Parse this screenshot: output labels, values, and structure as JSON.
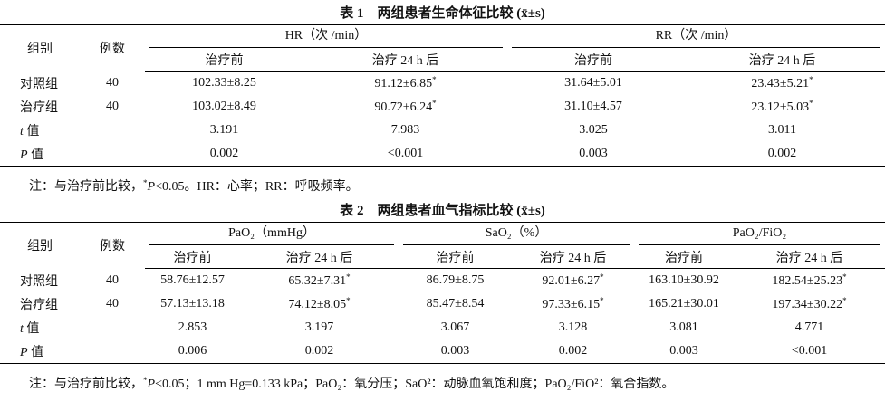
{
  "tables": [
    {
      "title": "表 1　两组患者生命体征比较 (x̄±s)",
      "header": {
        "group": "组别",
        "n": "例数",
        "spans": [
          "HR（次 /min）",
          "RR（次 /min）"
        ],
        "sub": [
          "治疗前",
          "治疗 24 h 后",
          "治疗前",
          "治疗 24 h 后"
        ]
      },
      "rows": [
        [
          "对照组",
          "40",
          "102.33±8.25",
          "91.12±6.85*",
          "31.64±5.01",
          "23.43±5.21*"
        ],
        [
          "治疗组",
          "40",
          "103.02±8.49",
          "90.72±6.24*",
          "31.10±4.57",
          "23.12±5.03*"
        ],
        [
          "t 值",
          null,
          "3.191",
          "7.983",
          "3.025",
          "3.011"
        ],
        [
          "P 值",
          null,
          "0.002",
          "<0.001",
          "0.003",
          "0.002"
        ]
      ],
      "note": "注：与治疗前比较，*P<0.05。HR：心率；RR：呼吸频率。"
    },
    {
      "title": "表 2　两组患者血气指标比较 (x̄±s)",
      "header": {
        "group": "组别",
        "n": "例数",
        "spans": [
          "PaO₂（mmHg）",
          "SaO₂（%）",
          "PaO₂/FiO₂"
        ],
        "sub": [
          "治疗前",
          "治疗 24 h 后",
          "治疗前",
          "治疗 24 h 后",
          "治疗前",
          "治疗 24 h 后"
        ]
      },
      "rows": [
        [
          "对照组",
          "40",
          "58.76±12.57",
          "65.32±7.31*",
          "86.79±8.75",
          "92.01±6.27*",
          "163.10±30.92",
          "182.54±25.23*"
        ],
        [
          "治疗组",
          "40",
          "57.13±13.18",
          "74.12±8.05*",
          "85.47±8.54",
          "97.33±6.15*",
          "165.21±30.01",
          "197.34±30.22*"
        ],
        [
          "t 值",
          null,
          "2.853",
          "3.197",
          "3.067",
          "3.128",
          "3.081",
          "4.771"
        ],
        [
          "P 值",
          null,
          "0.006",
          "0.002",
          "0.003",
          "0.002",
          "0.003",
          "<0.001"
        ]
      ],
      "note": "注：与治疗前比较，*P<0.05；1 mm Hg=0.133 kPa；PaO₂：氧分压；SaO²：动脉血氧饱和度；PaO₂/FiO²：氧合指数。"
    }
  ]
}
